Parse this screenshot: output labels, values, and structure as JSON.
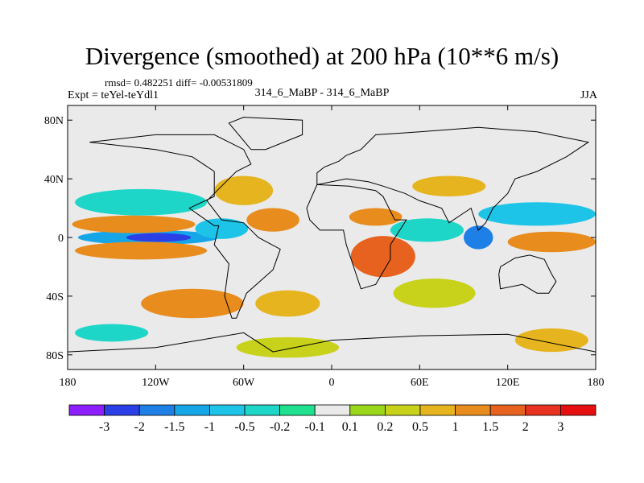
{
  "chart_data": {
    "type": "heatmap",
    "title": "Divergence (smoothed) at 200 hPa (10**6 m/s)",
    "stats": "rmsd= 0.482251 diff= -0.00531809",
    "left_subtitle": "Expt = teYel-teYdl1",
    "center_subtitle": "314_6_MaBP - 314_6_MaBP",
    "right_subtitle": "JJA",
    "x_axis": {
      "range": [
        -180,
        180
      ],
      "ticks": [
        -180,
        -120,
        -60,
        0,
        60,
        120,
        180
      ],
      "tick_labels": [
        "180",
        "120W",
        "60W",
        "0",
        "60E",
        "120E",
        "180"
      ]
    },
    "y_axis": {
      "range": [
        -90,
        90
      ],
      "ticks": [
        80,
        40,
        0,
        -40,
        -80
      ],
      "tick_labels": [
        "80N",
        "40N",
        "0",
        "40S",
        "80S"
      ]
    },
    "colorbar": {
      "levels": [
        "-3",
        "-2",
        "-1.5",
        "-1",
        "-0.5",
        "-0.2",
        "-0.1",
        "0.1",
        "0.2",
        "0.5",
        "1",
        "1.5",
        "2",
        "3"
      ],
      "colors": [
        "#8c1eff",
        "#2a3fe6",
        "#1e7fe6",
        "#16a6e8",
        "#1ec4e8",
        "#1ed6c8",
        "#1ee08f",
        "#eaeaea",
        "#9ad61a",
        "#c8d21a",
        "#e6b41e",
        "#e88c1e",
        "#e6621e",
        "#e6321e",
        "#e60f0f"
      ]
    },
    "features": [
      {
        "type": "ellipse",
        "lon": -125,
        "lat": 0,
        "rlon": 48,
        "rlat": 5,
        "value": -1.2
      },
      {
        "type": "ellipse",
        "lon": -118,
        "lat": 0,
        "rlon": 22,
        "rlat": 3,
        "value": -2.2
      },
      {
        "type": "ellipse",
        "lon": -135,
        "lat": 9,
        "rlon": 42,
        "rlat": 6,
        "value": 1.0
      },
      {
        "type": "ellipse",
        "lon": -130,
        "lat": -9,
        "rlon": 45,
        "rlat": 6,
        "value": 1.0
      },
      {
        "type": "ellipse",
        "lon": -130,
        "lat": 24,
        "rlon": 45,
        "rlat": 9,
        "value": -0.4
      },
      {
        "type": "ellipse",
        "lon": -40,
        "lat": 12,
        "rlon": 18,
        "rlat": 8,
        "value": 1.0
      },
      {
        "type": "ellipse",
        "lon": -60,
        "lat": 32,
        "rlon": 20,
        "rlat": 10,
        "value": 0.5
      },
      {
        "type": "ellipse",
        "lon": -75,
        "lat": 6,
        "rlon": 18,
        "rlat": 7,
        "value": -1.0
      },
      {
        "type": "ellipse",
        "lon": 35,
        "lat": -13,
        "rlon": 22,
        "rlat": 14,
        "value": 1.5
      },
      {
        "type": "ellipse",
        "lon": 30,
        "lat": 14,
        "rlon": 18,
        "rlat": 6,
        "value": 1.0
      },
      {
        "type": "ellipse",
        "lon": 65,
        "lat": 5,
        "rlon": 25,
        "rlat": 8,
        "value": -0.5
      },
      {
        "type": "ellipse",
        "lon": 100,
        "lat": 0,
        "rlon": 10,
        "rlat": 8,
        "value": -1.6
      },
      {
        "type": "ellipse",
        "lon": 150,
        "lat": -3,
        "rlon": 30,
        "rlat": 7,
        "value": 1.2
      },
      {
        "type": "ellipse",
        "lon": 140,
        "lat": 16,
        "rlon": 40,
        "rlat": 8,
        "value": -0.6
      },
      {
        "type": "ellipse",
        "lon": 80,
        "lat": 35,
        "rlon": 25,
        "rlat": 7,
        "value": 0.6
      },
      {
        "type": "ellipse",
        "lon": 70,
        "lat": -38,
        "rlon": 28,
        "rlat": 10,
        "value": 0.4
      },
      {
        "type": "ellipse",
        "lon": -95,
        "lat": -45,
        "rlon": 35,
        "rlat": 10,
        "value": 1.0
      },
      {
        "type": "ellipse",
        "lon": -30,
        "lat": -45,
        "rlon": 22,
        "rlat": 9,
        "value": 0.6
      },
      {
        "type": "ellipse",
        "lon": -150,
        "lat": -65,
        "rlon": 25,
        "rlat": 6,
        "value": -0.5
      },
      {
        "type": "ellipse",
        "lon": -30,
        "lat": -75,
        "rlon": 35,
        "rlat": 7,
        "value": 0.4
      },
      {
        "type": "ellipse",
        "lon": 150,
        "lat": -70,
        "rlon": 25,
        "rlat": 8,
        "value": 0.5
      }
    ]
  }
}
